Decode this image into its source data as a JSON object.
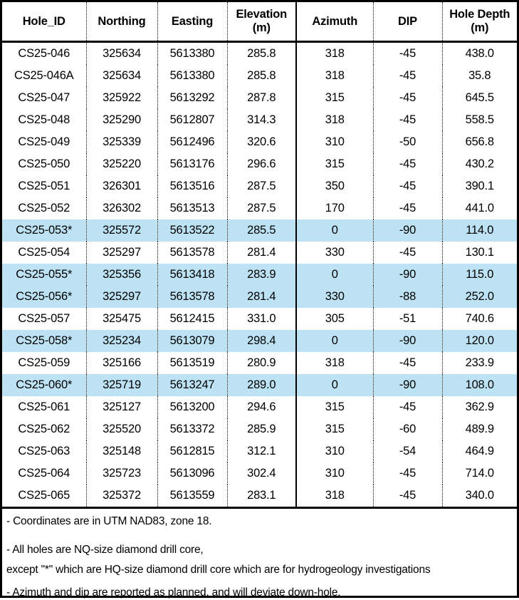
{
  "colors": {
    "highlight_row": "#bde2f3",
    "border": "#000000",
    "text": "#000000",
    "background": "#ffffff"
  },
  "table": {
    "columns": [
      {
        "key": "hole_id",
        "label": "Hole_ID"
      },
      {
        "key": "northing",
        "label": "Northing"
      },
      {
        "key": "easting",
        "label": "Easting"
      },
      {
        "key": "elevation",
        "label": "Elevation (m)",
        "label_lines": [
          "Elevation",
          "(m)"
        ]
      },
      {
        "key": "azimuth",
        "label": "Azimuth"
      },
      {
        "key": "dip",
        "label": "DIP"
      },
      {
        "key": "hole_depth",
        "label": "Hole Depth (m)",
        "label_lines": [
          "Hole Depth",
          "(m)"
        ]
      }
    ],
    "rows": [
      {
        "hole_id": "CS25-046",
        "northing": "325634",
        "easting": "5613380",
        "elevation": "285.8",
        "azimuth": "318",
        "dip": "-45",
        "hole_depth": "438.0",
        "highlighted": false
      },
      {
        "hole_id": "CS25-046A",
        "northing": "325634",
        "easting": "5613380",
        "elevation": "285.8",
        "azimuth": "318",
        "dip": "-45",
        "hole_depth": "35.8",
        "highlighted": false
      },
      {
        "hole_id": "CS25-047",
        "northing": "325922",
        "easting": "5613292",
        "elevation": "287.8",
        "azimuth": "315",
        "dip": "-45",
        "hole_depth": "645.5",
        "highlighted": false
      },
      {
        "hole_id": "CS25-048",
        "northing": "325290",
        "easting": "5612807",
        "elevation": "314.3",
        "azimuth": "318",
        "dip": "-45",
        "hole_depth": "558.5",
        "highlighted": false
      },
      {
        "hole_id": "CS25-049",
        "northing": "325339",
        "easting": "5612496",
        "elevation": "320.6",
        "azimuth": "310",
        "dip": "-50",
        "hole_depth": "656.8",
        "highlighted": false
      },
      {
        "hole_id": "CS25-050",
        "northing": "325220",
        "easting": "5613176",
        "elevation": "296.6",
        "azimuth": "315",
        "dip": "-45",
        "hole_depth": "430.2",
        "highlighted": false
      },
      {
        "hole_id": "CS25-051",
        "northing": "326301",
        "easting": "5613516",
        "elevation": "287.5",
        "azimuth": "350",
        "dip": "-45",
        "hole_depth": "390.1",
        "highlighted": false
      },
      {
        "hole_id": "CS25-052",
        "northing": "326302",
        "easting": "5613513",
        "elevation": "287.5",
        "azimuth": "170",
        "dip": "-45",
        "hole_depth": "441.0",
        "highlighted": false
      },
      {
        "hole_id": "CS25-053*",
        "northing": "325572",
        "easting": "5613522",
        "elevation": "285.5",
        "azimuth": "0",
        "dip": "-90",
        "hole_depth": "114.0",
        "highlighted": true
      },
      {
        "hole_id": "CS25-054",
        "northing": "325297",
        "easting": "5613578",
        "elevation": "281.4",
        "azimuth": "330",
        "dip": "-45",
        "hole_depth": "130.1",
        "highlighted": false
      },
      {
        "hole_id": "CS25-055*",
        "northing": "325356",
        "easting": "5613418",
        "elevation": "283.9",
        "azimuth": "0",
        "dip": "-90",
        "hole_depth": "115.0",
        "highlighted": true
      },
      {
        "hole_id": "CS25-056*",
        "northing": "325297",
        "easting": "5613578",
        "elevation": "281.4",
        "azimuth": "330",
        "dip": "-88",
        "hole_depth": "252.0",
        "highlighted": true
      },
      {
        "hole_id": "CS25-057",
        "northing": "325475",
        "easting": "5612415",
        "elevation": "331.0",
        "azimuth": "305",
        "dip": "-51",
        "hole_depth": "740.6",
        "highlighted": false
      },
      {
        "hole_id": "CS25-058*",
        "northing": "325234",
        "easting": "5613079",
        "elevation": "298.4",
        "azimuth": "0",
        "dip": "-90",
        "hole_depth": "120.0",
        "highlighted": true
      },
      {
        "hole_id": "CS25-059",
        "northing": "325166",
        "easting": "5613519",
        "elevation": "280.9",
        "azimuth": "318",
        "dip": "-45",
        "hole_depth": "233.9",
        "highlighted": false
      },
      {
        "hole_id": "CS25-060*",
        "northing": "325719",
        "easting": "5613247",
        "elevation": "289.0",
        "azimuth": "0",
        "dip": "-90",
        "hole_depth": "108.0",
        "highlighted": true
      },
      {
        "hole_id": "CS25-061",
        "northing": "325127",
        "easting": "5613200",
        "elevation": "294.6",
        "azimuth": "315",
        "dip": "-45",
        "hole_depth": "362.9",
        "highlighted": false
      },
      {
        "hole_id": "CS25-062",
        "northing": "325520",
        "easting": "5613372",
        "elevation": "285.9",
        "azimuth": "315",
        "dip": "-60",
        "hole_depth": "489.9",
        "highlighted": false
      },
      {
        "hole_id": "CS25-063",
        "northing": "325148",
        "easting": "5612815",
        "elevation": "312.1",
        "azimuth": "310",
        "dip": "-54",
        "hole_depth": "464.9",
        "highlighted": false
      },
      {
        "hole_id": "CS25-064",
        "northing": "325723",
        "easting": "5613096",
        "elevation": "302.4",
        "azimuth": "310",
        "dip": "-45",
        "hole_depth": "714.0",
        "highlighted": false
      },
      {
        "hole_id": "CS25-065",
        "northing": "325372",
        "easting": "5613559",
        "elevation": "283.1",
        "azimuth": "318",
        "dip": "-45",
        "hole_depth": "340.0",
        "highlighted": false
      }
    ]
  },
  "footnotes": {
    "lines": [
      "- Coordinates are in UTM NAD83, zone 18.",
      "- All holes are NQ-size diamond drill core,",
      "except \"*\" which are HQ-size diamond drill core which are for hydrogeology investigations",
      "- Azimuth and dip are reported as planned, and will deviate down-hole."
    ]
  }
}
